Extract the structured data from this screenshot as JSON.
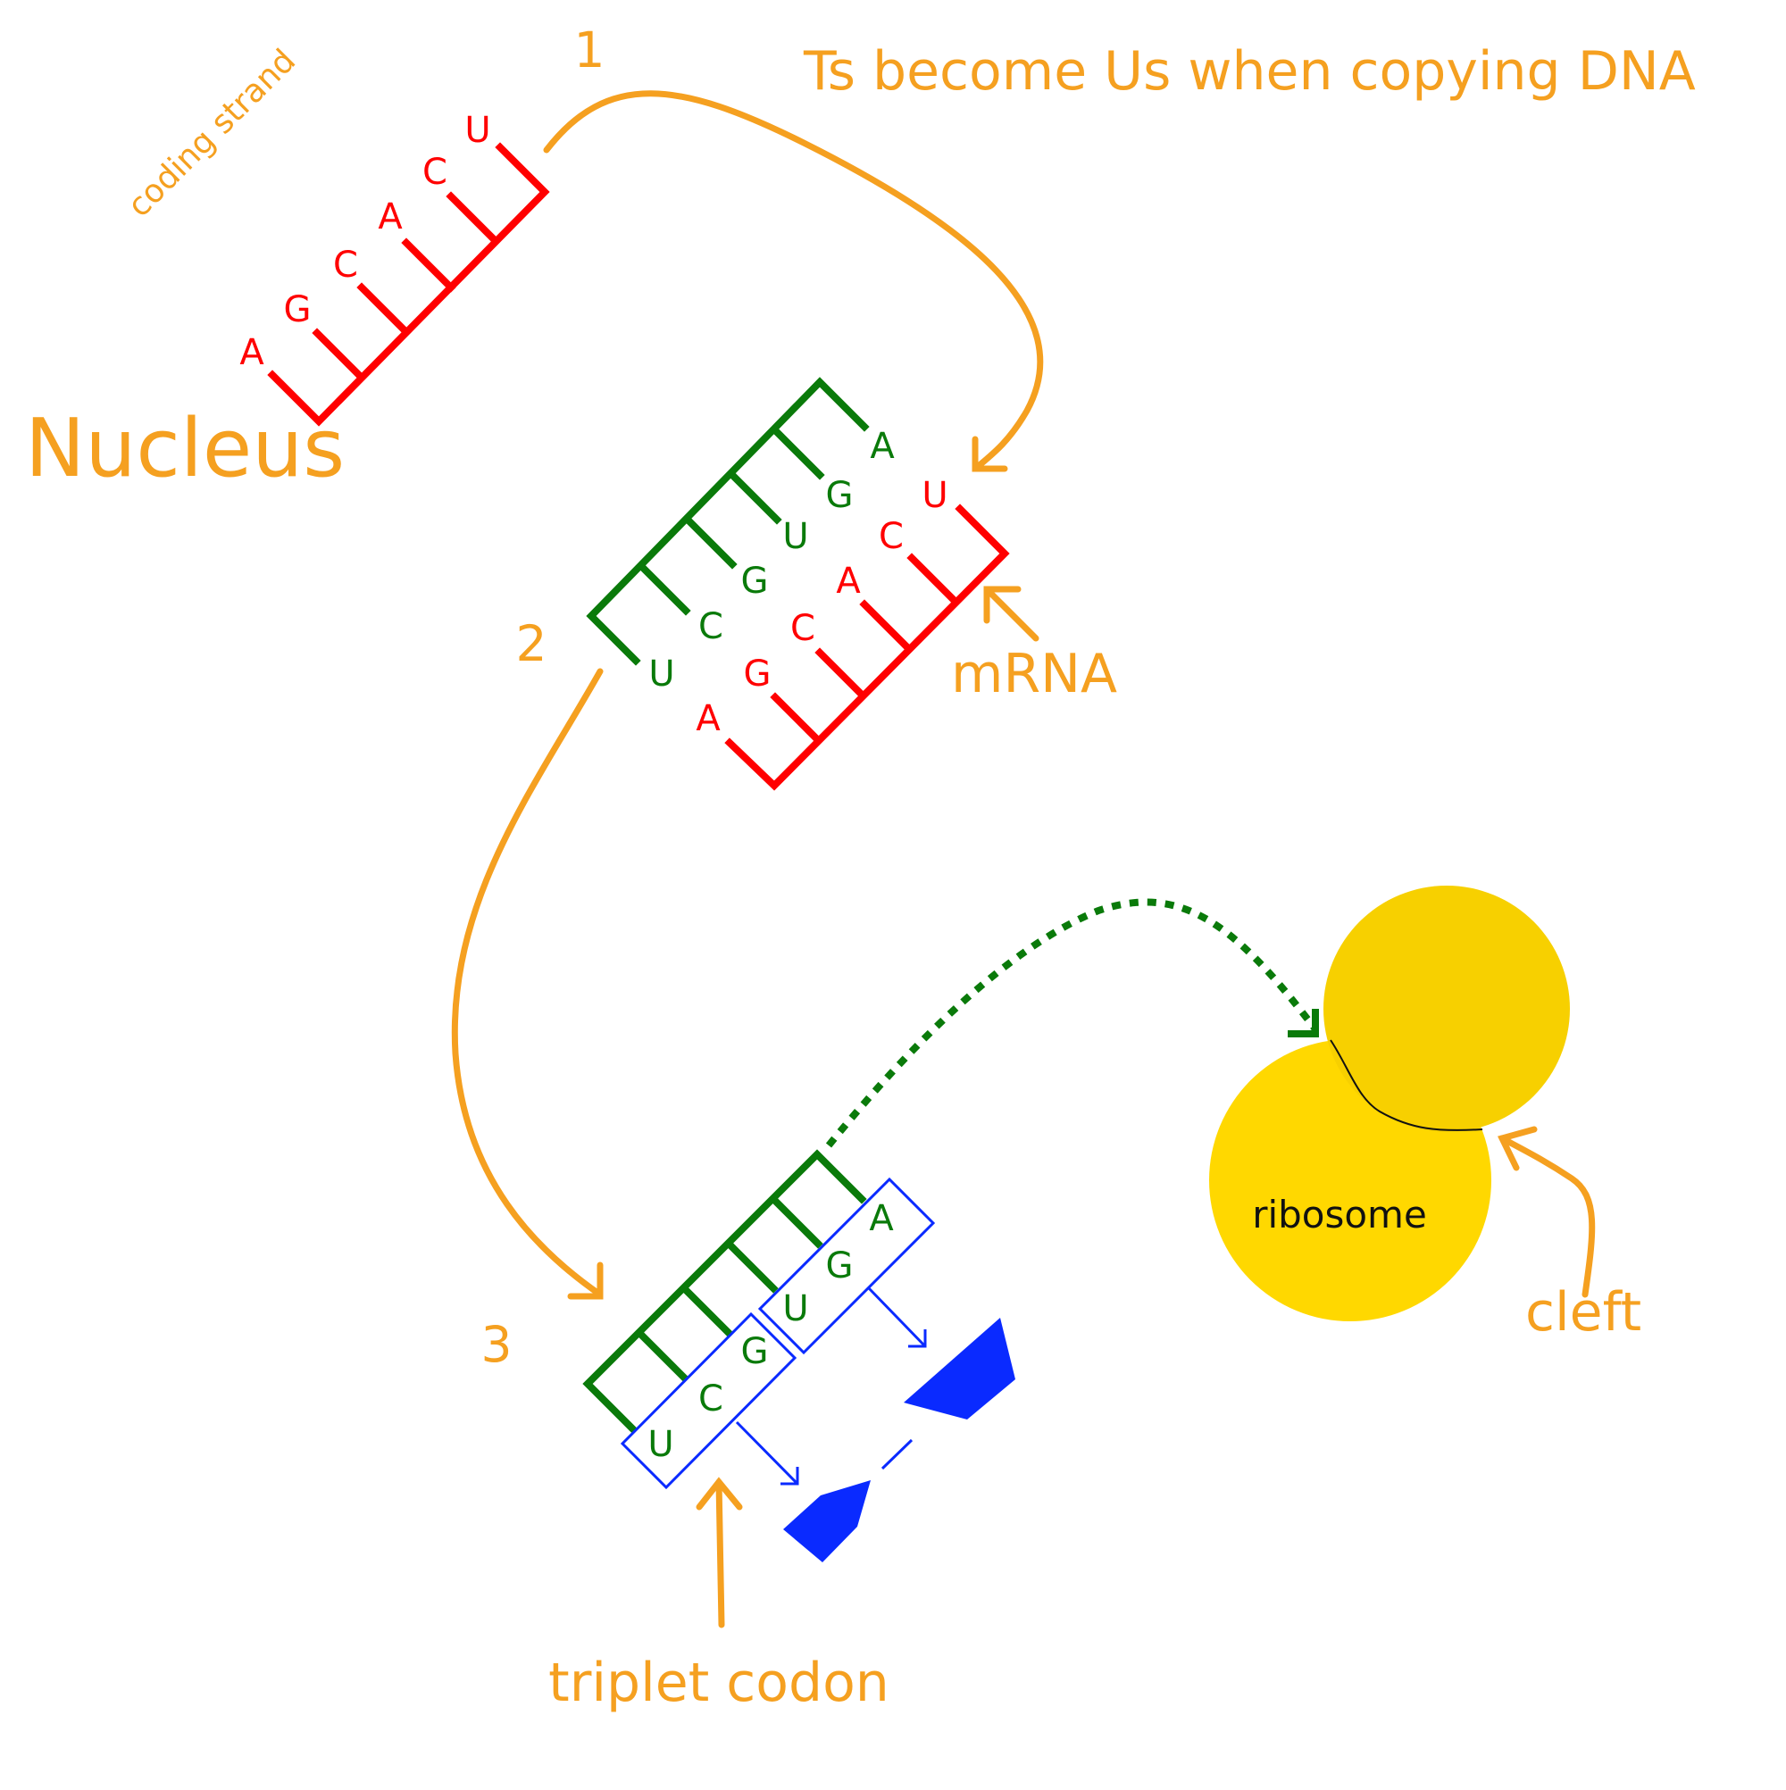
{
  "labels": {
    "coding_strand": "coding strand",
    "nucleus": "Nucleus",
    "step1": "1",
    "step2": "2",
    "step3": "3",
    "title_note": "Ts become Us when copying DNA",
    "mrna": "mRNA",
    "ribosome": "ribosome",
    "cleft": "cleft",
    "triplet_codon": "triplet codon"
  },
  "coding_strand_bases": [
    "A",
    "G",
    "C",
    "A",
    "C",
    "U"
  ],
  "step2_green_bases": [
    "A",
    "G",
    "U",
    "G",
    "C",
    "U"
  ],
  "step2_red_bases": [
    "U",
    "C",
    "A",
    "C",
    "G",
    "A"
  ],
  "step3_bases": [
    "A",
    "G",
    "U",
    "G",
    "C",
    "U"
  ],
  "colors": {
    "orange": "#f5a020",
    "red": "#ff0000",
    "green": "#0a7a0a",
    "blue": "#0a2aff",
    "ribosome_small": "#f7d000",
    "ribosome_large": "#ffd800"
  }
}
